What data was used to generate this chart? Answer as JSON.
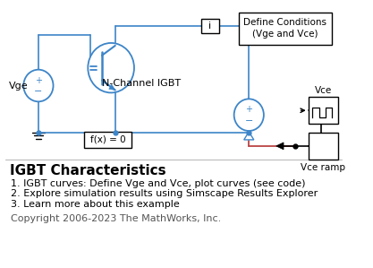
{
  "title": "IGBT Characteristics",
  "line1": "1. IGBT curves: Define Vge and Vce, plot curves (see code)",
  "line2": "2. Explore simulation results using Simscape Results Explorer",
  "line3": "3. Learn more about this example",
  "copyright": "Copyright 2006-2023 The MathWorks, Inc.",
  "bg_color": "#ffffff",
  "circuit_color": "#3d85c8",
  "box_color": "#000000",
  "text_color": "#000000",
  "red_color": "#bb4444",
  "title_fontsize": 11,
  "body_fontsize": 8,
  "copyright_fontsize": 8
}
